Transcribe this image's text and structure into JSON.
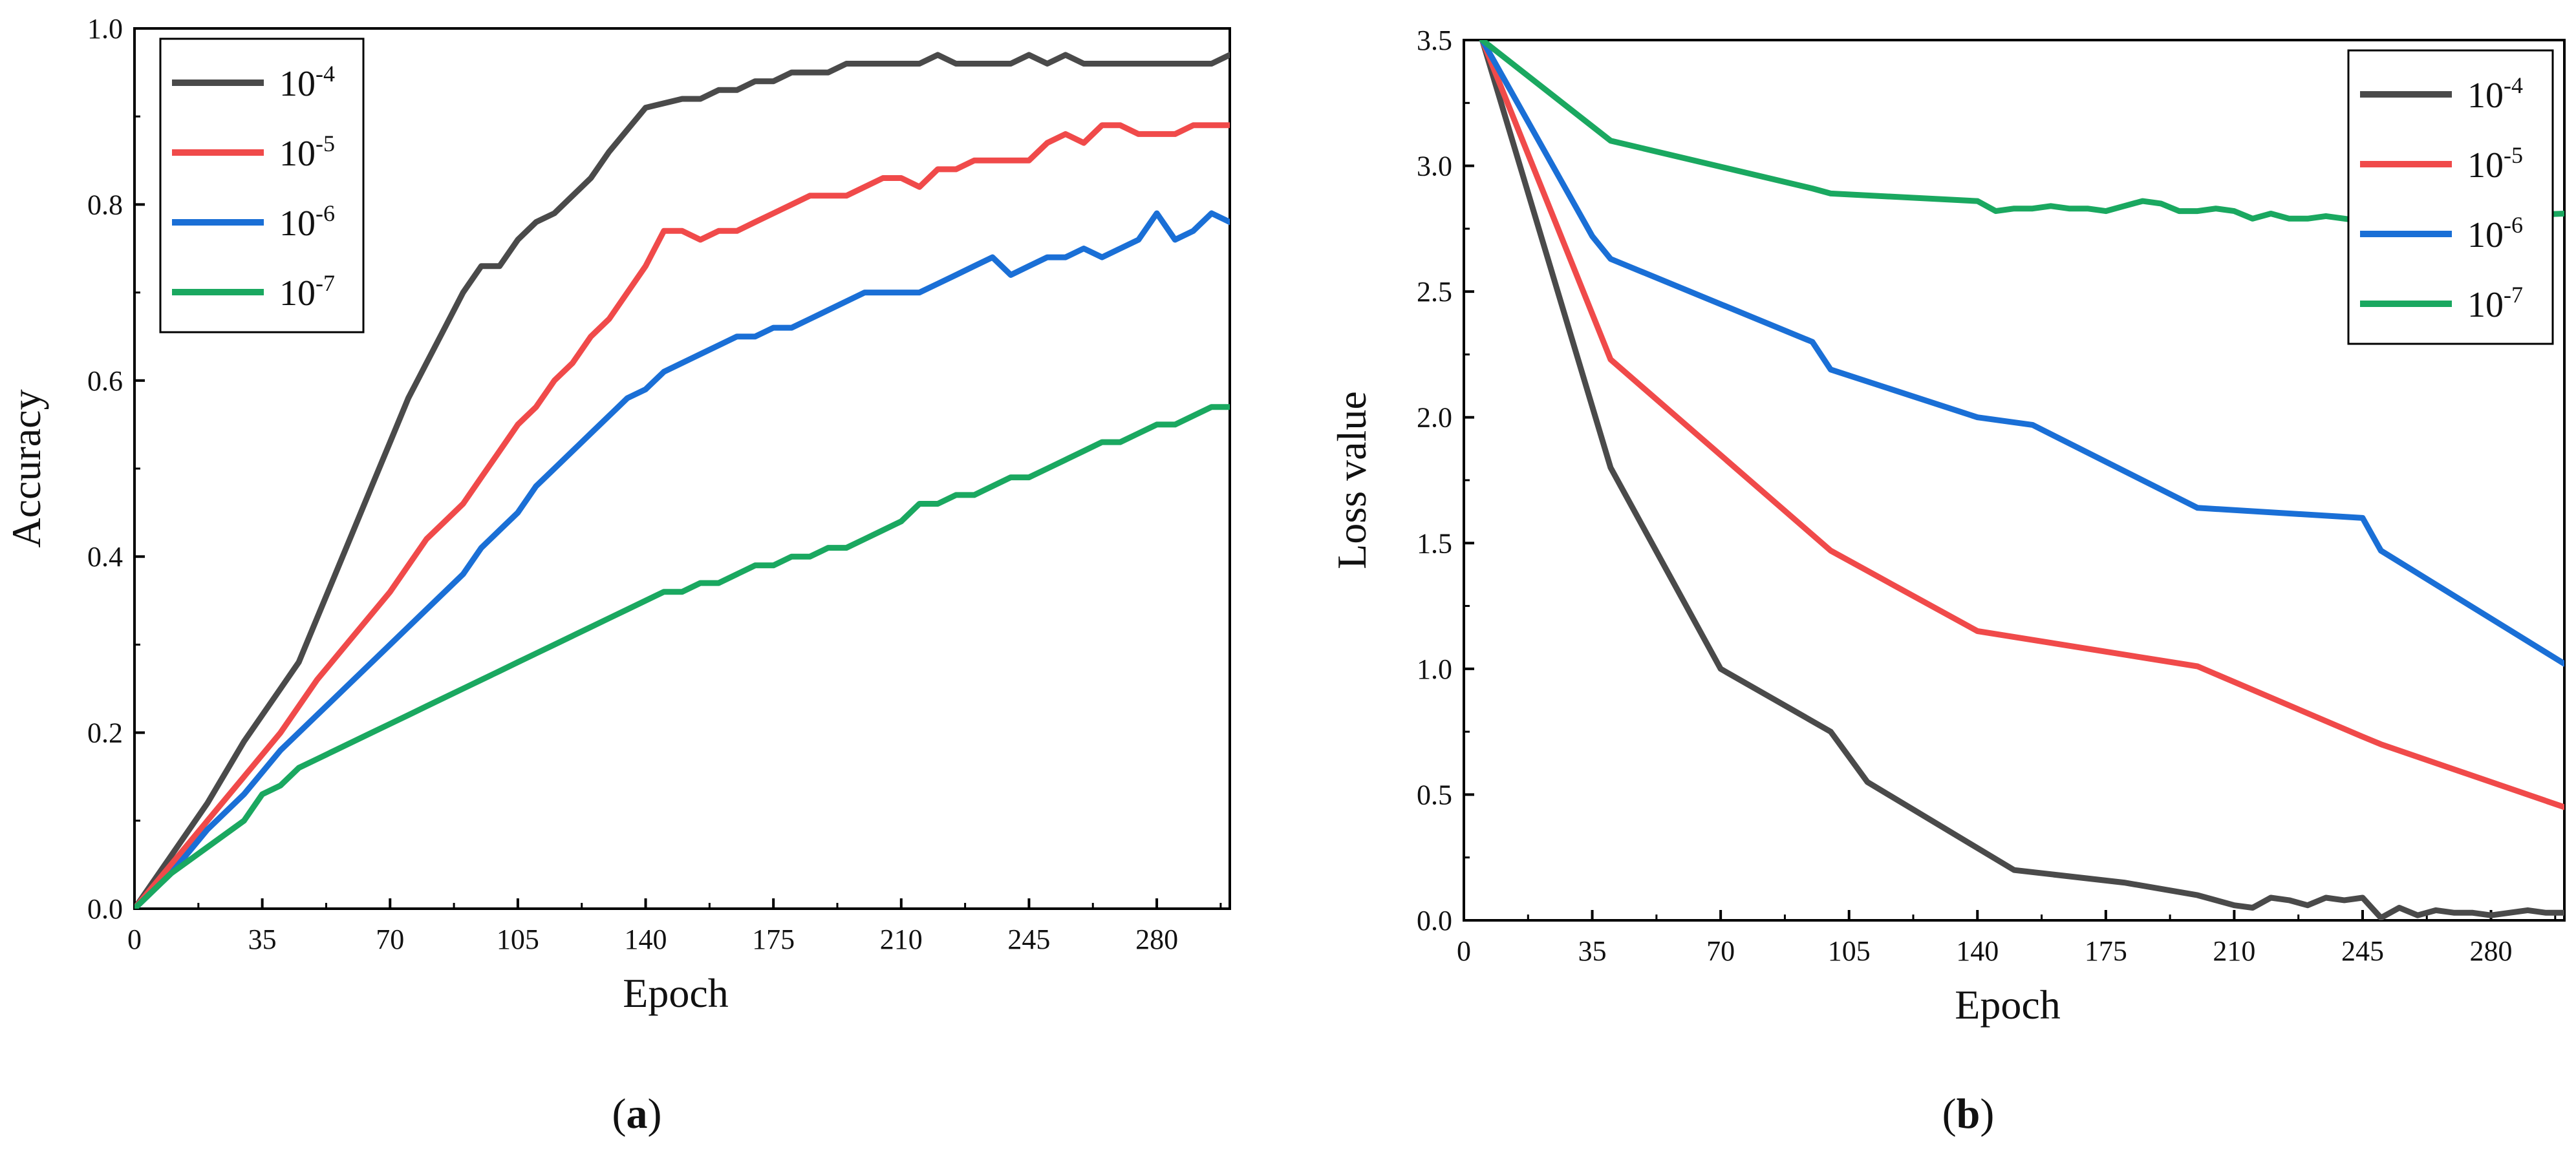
{
  "chart_data": [
    {
      "type": "line",
      "panel_label": "a",
      "title": "",
      "xlabel": "Epoch",
      "ylabel": "Accuracy",
      "xlim": [
        0,
        300
      ],
      "ylim": [
        0,
        1.0
      ],
      "xticks": [
        0,
        35,
        70,
        105,
        140,
        175,
        210,
        245,
        280
      ],
      "yticks": [
        "0.0",
        "0.2",
        "0.4",
        "0.6",
        "0.8",
        "1.0"
      ],
      "legend_position": "top-left",
      "series": [
        {
          "name": "10^-4",
          "base": "10",
          "exp": "-4",
          "color": "#4a4a4a",
          "x": [
            0,
            10,
            20,
            30,
            40,
            45,
            50,
            55,
            60,
            65,
            70,
            75,
            80,
            85,
            90,
            95,
            100,
            105,
            110,
            115,
            120,
            125,
            130,
            140,
            150,
            155,
            160,
            165,
            170,
            175,
            180,
            185,
            190,
            195,
            200,
            205,
            210,
            215,
            220,
            225,
            230,
            235,
            240,
            245,
            250,
            255,
            260,
            265,
            270,
            275,
            280,
            285,
            290,
            295,
            300
          ],
          "y": [
            0.0,
            0.06,
            0.12,
            0.19,
            0.25,
            0.28,
            0.33,
            0.38,
            0.43,
            0.48,
            0.53,
            0.58,
            0.62,
            0.66,
            0.7,
            0.73,
            0.73,
            0.76,
            0.78,
            0.79,
            0.81,
            0.83,
            0.86,
            0.91,
            0.92,
            0.92,
            0.93,
            0.93,
            0.94,
            0.94,
            0.95,
            0.95,
            0.95,
            0.96,
            0.96,
            0.96,
            0.96,
            0.96,
            0.97,
            0.96,
            0.96,
            0.96,
            0.96,
            0.97,
            0.96,
            0.97,
            0.96,
            0.96,
            0.96,
            0.96,
            0.96,
            0.96,
            0.96,
            0.96,
            0.97
          ]
        },
        {
          "name": "10^-5",
          "base": "10",
          "exp": "-5",
          "color": "#f04a4a",
          "x": [
            0,
            10,
            20,
            30,
            40,
            50,
            60,
            70,
            80,
            85,
            90,
            95,
            100,
            105,
            110,
            115,
            120,
            125,
            130,
            140,
            145,
            150,
            155,
            160,
            165,
            170,
            175,
            180,
            185,
            190,
            195,
            200,
            205,
            210,
            215,
            220,
            225,
            230,
            235,
            240,
            245,
            250,
            255,
            260,
            265,
            270,
            275,
            280,
            285,
            290,
            295,
            300
          ],
          "y": [
            0.0,
            0.05,
            0.1,
            0.15,
            0.2,
            0.26,
            0.31,
            0.36,
            0.42,
            0.44,
            0.46,
            0.49,
            0.52,
            0.55,
            0.57,
            0.6,
            0.62,
            0.65,
            0.67,
            0.73,
            0.77,
            0.77,
            0.76,
            0.77,
            0.77,
            0.78,
            0.79,
            0.8,
            0.81,
            0.81,
            0.81,
            0.82,
            0.83,
            0.83,
            0.82,
            0.84,
            0.84,
            0.85,
            0.85,
            0.85,
            0.85,
            0.87,
            0.88,
            0.87,
            0.89,
            0.89,
            0.88,
            0.88,
            0.88,
            0.89,
            0.89,
            0.89
          ]
        },
        {
          "name": "10^-6",
          "base": "10",
          "exp": "-6",
          "color": "#1a6fd6",
          "x": [
            0,
            10,
            20,
            30,
            40,
            50,
            60,
            70,
            80,
            90,
            95,
            100,
            105,
            110,
            115,
            120,
            125,
            130,
            135,
            140,
            145,
            150,
            155,
            160,
            165,
            170,
            175,
            180,
            185,
            190,
            195,
            200,
            205,
            210,
            215,
            220,
            225,
            230,
            235,
            240,
            245,
            250,
            255,
            260,
            265,
            270,
            275,
            280,
            285,
            290,
            295,
            300
          ],
          "y": [
            0.0,
            0.04,
            0.09,
            0.13,
            0.18,
            0.22,
            0.26,
            0.3,
            0.34,
            0.38,
            0.41,
            0.43,
            0.45,
            0.48,
            0.5,
            0.52,
            0.54,
            0.56,
            0.58,
            0.59,
            0.61,
            0.62,
            0.63,
            0.64,
            0.65,
            0.65,
            0.66,
            0.66,
            0.67,
            0.68,
            0.69,
            0.7,
            0.7,
            0.7,
            0.7,
            0.71,
            0.72,
            0.73,
            0.74,
            0.72,
            0.73,
            0.74,
            0.74,
            0.75,
            0.74,
            0.75,
            0.76,
            0.79,
            0.76,
            0.77,
            0.79,
            0.78
          ]
        },
        {
          "name": "10^-7",
          "base": "10",
          "exp": "-7",
          "color": "#1aa860",
          "x": [
            0,
            10,
            20,
            30,
            35,
            40,
            45,
            50,
            55,
            60,
            65,
            70,
            75,
            80,
            85,
            90,
            95,
            100,
            105,
            110,
            115,
            120,
            125,
            130,
            135,
            140,
            145,
            150,
            155,
            160,
            165,
            170,
            175,
            180,
            185,
            190,
            195,
            200,
            205,
            210,
            215,
            220,
            225,
            230,
            235,
            240,
            245,
            250,
            255,
            260,
            265,
            270,
            275,
            280,
            285,
            290,
            295,
            300
          ],
          "y": [
            0.0,
            0.04,
            0.07,
            0.1,
            0.13,
            0.14,
            0.16,
            0.17,
            0.18,
            0.19,
            0.2,
            0.21,
            0.22,
            0.23,
            0.24,
            0.25,
            0.26,
            0.27,
            0.28,
            0.29,
            0.3,
            0.31,
            0.32,
            0.33,
            0.34,
            0.35,
            0.36,
            0.36,
            0.37,
            0.37,
            0.38,
            0.39,
            0.39,
            0.4,
            0.4,
            0.41,
            0.41,
            0.42,
            0.43,
            0.44,
            0.46,
            0.46,
            0.47,
            0.47,
            0.48,
            0.49,
            0.49,
            0.5,
            0.51,
            0.52,
            0.53,
            0.53,
            0.54,
            0.55,
            0.55,
            0.56,
            0.57,
            0.57
          ]
        }
      ]
    },
    {
      "type": "line",
      "panel_label": "b",
      "title": "",
      "xlabel": "Epoch",
      "ylabel": "Loss value",
      "xlim": [
        0,
        300
      ],
      "ylim": [
        0,
        3.5
      ],
      "xticks": [
        0,
        35,
        70,
        105,
        140,
        175,
        210,
        245,
        280
      ],
      "yticks": [
        "0.0",
        "0.5",
        "1.0",
        "1.5",
        "2.0",
        "2.5",
        "3.0",
        "3.5"
      ],
      "legend_position": "top-right",
      "series": [
        {
          "name": "10^-4",
          "base": "10",
          "exp": "-4",
          "color": "#4a4a4a",
          "x": [
            5,
            40,
            70,
            100,
            110,
            150,
            180,
            200,
            210,
            215,
            220,
            225,
            230,
            235,
            240,
            245,
            250,
            255,
            260,
            265,
            270,
            275,
            280,
            285,
            290,
            295,
            300
          ],
          "y": [
            3.5,
            1.8,
            1.0,
            0.75,
            0.55,
            0.2,
            0.15,
            0.1,
            0.06,
            0.05,
            0.09,
            0.08,
            0.06,
            0.09,
            0.08,
            0.09,
            0.01,
            0.05,
            0.02,
            0.04,
            0.03,
            0.03,
            0.02,
            0.03,
            0.04,
            0.03,
            0.03
          ]
        },
        {
          "name": "10^-5",
          "base": "10",
          "exp": "-5",
          "color": "#f04a4a",
          "x": [
            5,
            40,
            100,
            140,
            200,
            245,
            250,
            300
          ],
          "y": [
            3.5,
            2.23,
            1.47,
            1.15,
            1.01,
            0.73,
            0.7,
            0.45
          ]
        },
        {
          "name": "10^-6",
          "base": "10",
          "exp": "-6",
          "color": "#1a6fd6",
          "x": [
            5,
            35,
            40,
            95,
            100,
            140,
            155,
            200,
            245,
            250,
            300
          ],
          "y": [
            3.5,
            2.72,
            2.63,
            2.3,
            2.19,
            2.0,
            1.97,
            1.64,
            1.6,
            1.47,
            1.02
          ]
        },
        {
          "name": "10^-7",
          "base": "10",
          "exp": "-7",
          "color": "#1aa860",
          "x": [
            5,
            40,
            95,
            100,
            140,
            145,
            150,
            155,
            160,
            165,
            170,
            175,
            180,
            185,
            190,
            195,
            200,
            205,
            210,
            215,
            220,
            225,
            230,
            235,
            240,
            245,
            300
          ],
          "y": [
            3.5,
            3.1,
            2.91,
            2.89,
            2.86,
            2.82,
            2.83,
            2.83,
            2.84,
            2.83,
            2.83,
            2.82,
            2.84,
            2.86,
            2.85,
            2.82,
            2.82,
            2.83,
            2.82,
            2.79,
            2.81,
            2.79,
            2.79,
            2.8,
            2.79,
            2.78,
            2.81
          ]
        }
      ]
    }
  ]
}
